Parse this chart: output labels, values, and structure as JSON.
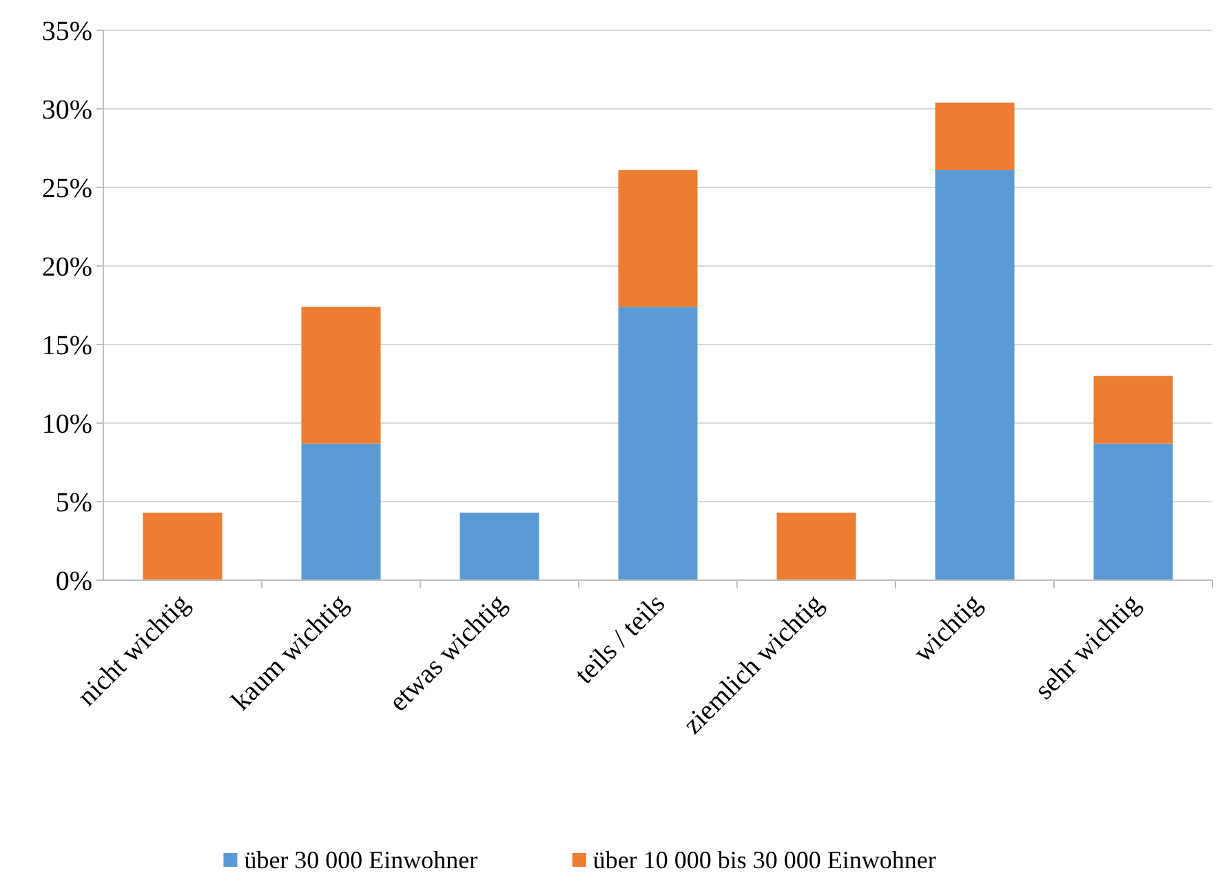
{
  "chart_data": {
    "type": "bar",
    "stacked": true,
    "categories": [
      "nicht wichtig",
      "kaum wichtig",
      "etwas wichtig",
      "teils / teils",
      "ziemlich wichtig",
      "wichtig",
      "sehr wichtig"
    ],
    "series": [
      {
        "name": "über 30 000 Einwohner",
        "color": "#5b9bd5",
        "values": [
          0,
          8.7,
          4.3,
          17.4,
          0,
          26.1,
          8.7
        ]
      },
      {
        "name": "über 10 000 bis 30 000 Einwohner",
        "color": "#ed7d31",
        "values": [
          4.3,
          8.7,
          0,
          8.7,
          4.3,
          4.3,
          4.3
        ]
      }
    ],
    "ylim": [
      0,
      35
    ],
    "yticks": [
      {
        "value": 0,
        "label": "0%"
      },
      {
        "value": 5,
        "label": "5%"
      },
      {
        "value": 10,
        "label": "10%"
      },
      {
        "value": 15,
        "label": "15%"
      },
      {
        "value": 20,
        "label": "20%"
      },
      {
        "value": 25,
        "label": "25%"
      },
      {
        "value": 30,
        "label": "30%"
      },
      {
        "value": 35,
        "label": "35%"
      }
    ],
    "grid": "y",
    "legend": "bottom"
  }
}
